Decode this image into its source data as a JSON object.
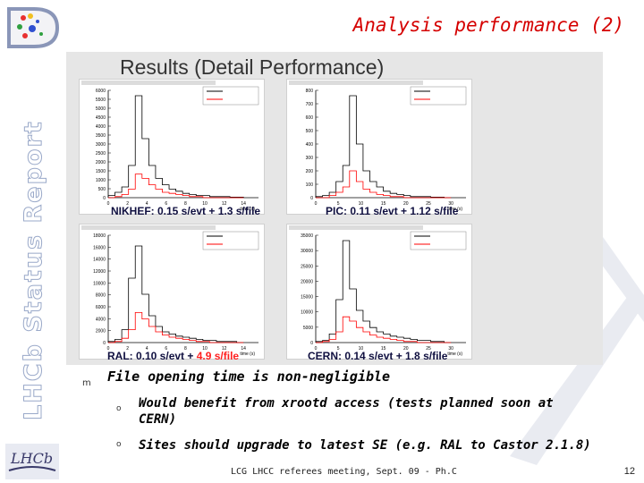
{
  "slide": {
    "title": "Analysis performance (2)",
    "side_title": "LHCb Status Report",
    "results_title": "Results (Detail Performance)",
    "footer": "LCG LHCC referees meeting, Sept. 09 - Ph.C",
    "page_number": "12",
    "logo_text": "LHCb"
  },
  "charts": [
    {
      "site": "NIKHEF",
      "caption_prefix": "NIKHEF: 0.15 s/evt + 1.3 s/file",
      "caption_red": "",
      "ylabels": [
        "6000",
        "5500",
        "5000",
        "4500",
        "4000",
        "3500",
        "3000",
        "2500",
        "2000",
        "1500",
        "1000",
        "500",
        "0"
      ],
      "xlabels": [
        "0",
        "2",
        "4",
        "6",
        "8",
        "10",
        "12",
        "14"
      ],
      "xunit": "time (s)"
    },
    {
      "site": "PIC",
      "caption_prefix": "PIC: 0.11 s/evt + 1.12 s/file",
      "caption_red": "",
      "ylabels": [
        "800",
        "700",
        "600",
        "500",
        "400",
        "300",
        "200",
        "100",
        "0"
      ],
      "xlabels": [
        "0",
        "5",
        "10",
        "15",
        "20",
        "25",
        "30"
      ],
      "xunit": "time (s)"
    },
    {
      "site": "RAL",
      "caption_prefix": "RAL: 0.10 s/evt + ",
      "caption_red": "4.9 s/file",
      "ylabels": [
        "18000",
        "16000",
        "14000",
        "12000",
        "10000",
        "8000",
        "6000",
        "4000",
        "2000",
        "0"
      ],
      "xlabels": [
        "0",
        "2",
        "4",
        "6",
        "8",
        "10",
        "12",
        "14"
      ],
      "xunit": "time (s)"
    },
    {
      "site": "CERN",
      "caption_prefix": "CERN: 0.14 s/evt + 1.8 s/file",
      "caption_red": "",
      "ylabels": [
        "35000",
        "30000",
        "25000",
        "20000",
        "15000",
        "10000",
        "5000",
        "0"
      ],
      "xlabels": [
        "0",
        "5",
        "10",
        "15",
        "20",
        "25",
        "30"
      ],
      "xunit": "time (s)"
    }
  ],
  "bullets": {
    "main_marker": "m",
    "main": "File opening time is non-negligible",
    "sub_marker": "o",
    "sub1_line1": "Would benefit from xrootd access (tests planned soon at",
    "sub1_line2": "CERN)",
    "sub2": "Sites should upgrade to latest SE (e.g. RAL to Castor 2.1.8)"
  },
  "colors": {
    "title_red": "#d50000",
    "histo_black": "#000000",
    "histo_red": "#ff0000",
    "panel_bg": "#e6e6e6",
    "caption_blue": "#101040"
  }
}
